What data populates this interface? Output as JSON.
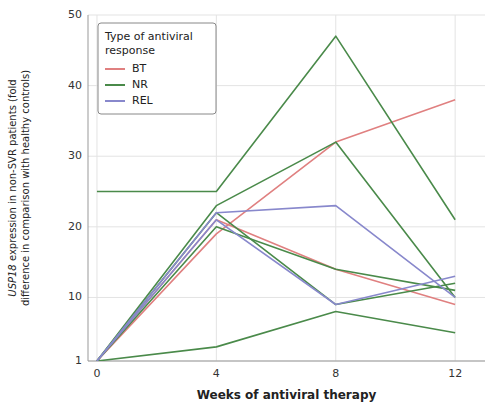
{
  "chart_data": {
    "type": "line",
    "xlabel": "Weeks of antiviral therapy",
    "ylabel": "USP18 expression in non-SVR patients (fold\ndifference in comparison with healthy controls)",
    "legend_title": "Type of antiviral\nresponse",
    "x": [
      0,
      4,
      8,
      12
    ],
    "xlim": [
      -0.3,
      13.0
    ],
    "xticks": [
      0,
      4,
      8,
      12
    ],
    "ylim": [
      1,
      50
    ],
    "yticks": [
      1,
      10,
      20,
      30,
      40,
      50
    ],
    "grid": true,
    "legend": "top-left",
    "series": [
      {
        "name": "BT",
        "color": "#E08080",
        "values": [
          1,
          19,
          32,
          38
        ]
      },
      {
        "name": "BT",
        "color": "#E08080",
        "values": [
          1,
          21,
          14,
          9
        ]
      },
      {
        "name": "NR",
        "color": "#4A8A4A",
        "values": [
          25,
          25,
          47,
          21
        ]
      },
      {
        "name": "NR",
        "color": "#4A8A4A",
        "values": [
          1,
          23,
          32,
          10
        ]
      },
      {
        "name": "NR",
        "color": "#4A8A4A",
        "values": [
          1,
          20,
          14,
          11
        ]
      },
      {
        "name": "NR",
        "color": "#4A8A4A",
        "values": [
          1,
          3,
          8,
          5
        ]
      },
      {
        "name": "NR",
        "color": "#4A8A4A",
        "values": [
          1,
          22,
          9,
          12
        ]
      },
      {
        "name": "REL",
        "color": "#8888CC",
        "values": [
          1,
          22,
          23,
          10
        ]
      },
      {
        "name": "REL",
        "color": "#8888CC",
        "values": [
          1,
          21,
          9,
          13
        ]
      }
    ]
  }
}
